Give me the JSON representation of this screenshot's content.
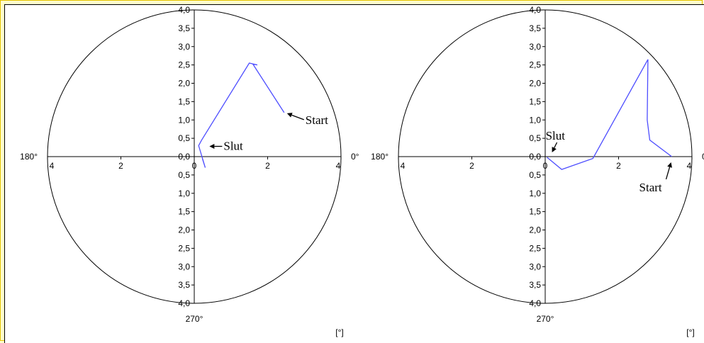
{
  "colors": {
    "trace": "#4D4DFF",
    "axis": "#000000",
    "panel": "#FFFFFF",
    "frame_bg": "#FFFFCC"
  },
  "labels": {
    "deg_0": "0°",
    "deg_180": "180°",
    "deg_270": "270°",
    "unit": "[°]",
    "start": "Start",
    "end": "Slut"
  },
  "chart_data": [
    {
      "type": "line",
      "title": "",
      "ylim": [
        0,
        4
      ],
      "grid": false,
      "y_ticks": [
        "0,0",
        "0,5",
        "1,0",
        "1,5",
        "2,0",
        "2,5",
        "3,0",
        "3,5",
        "4,0"
      ],
      "x_ticks": [
        "4",
        "2",
        "0",
        "2",
        "4"
      ],
      "series": [
        {
          "x": [
            2.45,
            1.6,
            1.72,
            1.5,
            0.2,
            0.12,
            0.3,
            0.22
          ],
          "y": [
            1.2,
            2.52,
            2.5,
            2.55,
            0.45,
            0.3,
            -0.3,
            -0.05
          ]
        }
      ],
      "annotations": [
        {
          "text": "Start",
          "at": [
            2.45,
            1.2
          ]
        },
        {
          "text": "Slut",
          "at": [
            0.22,
            0.28
          ]
        }
      ]
    },
    {
      "type": "line",
      "title": "",
      "ylim": [
        0,
        4
      ],
      "grid": false,
      "y_ticks": [
        "0,0",
        "0,5",
        "1,0",
        "1,5",
        "2,0",
        "2,5",
        "3,0",
        "3,5",
        "4,0"
      ],
      "x_ticks": [
        "4",
        "2",
        "0",
        "2",
        "4"
      ],
      "series": [
        {
          "x": [
            3.45,
            2.85,
            2.78,
            2.8,
            1.3,
            0.45,
            0.05
          ],
          "y": [
            0.0,
            0.45,
            1.0,
            2.65,
            -0.05,
            -0.35,
            -0.02
          ]
        }
      ],
      "annotations": [
        {
          "text": "Start",
          "at": [
            3.45,
            0.0
          ]
        },
        {
          "text": "Slut",
          "at": [
            0.05,
            0.0
          ]
        }
      ]
    }
  ]
}
